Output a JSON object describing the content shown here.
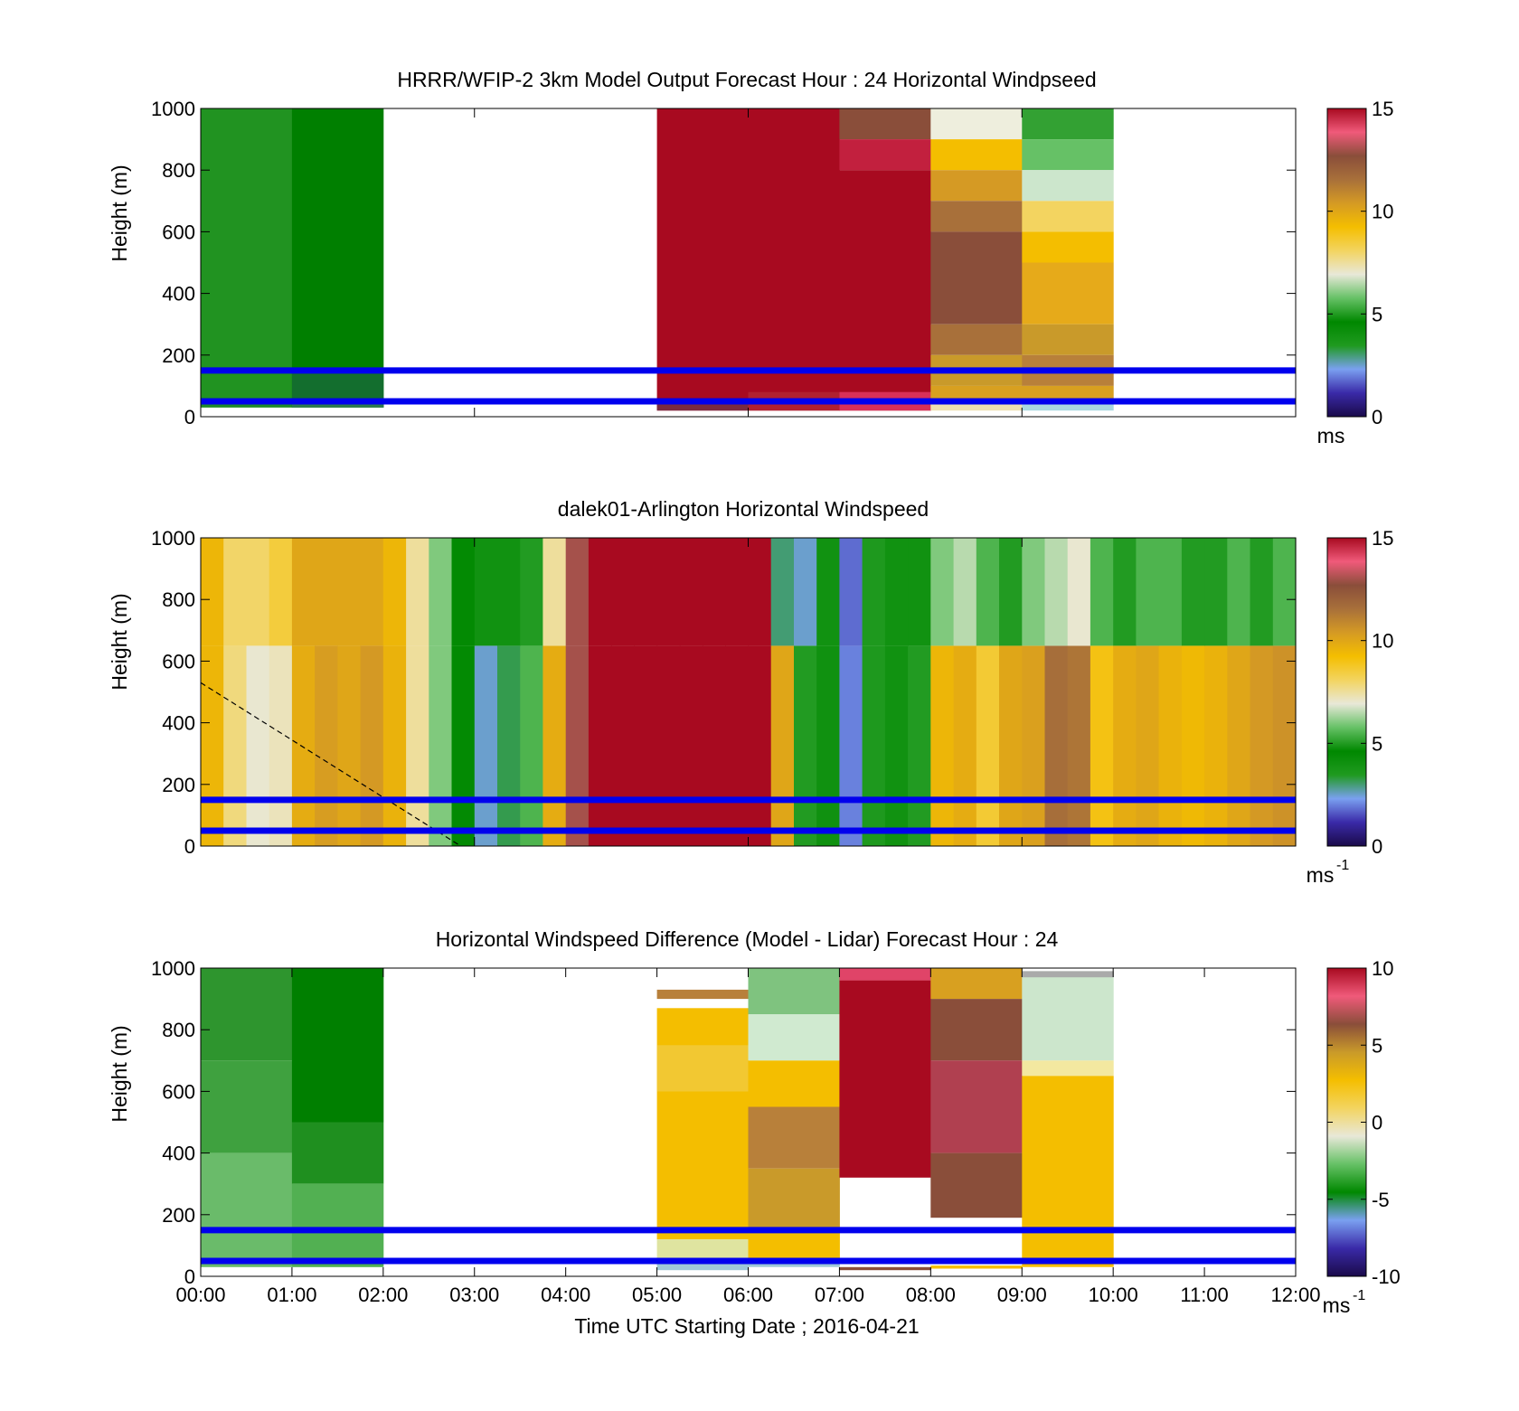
{
  "colors": {
    "wind_scale": [
      "#1a0a4a",
      "#3a2aa8",
      "#7aa0f0",
      "#1f9a1f",
      "#008800",
      "#66c166",
      "#e8e8d8",
      "#f3d460",
      "#f4be00",
      "#d59a24",
      "#a8703a",
      "#8a4e3a",
      "#f05a7a",
      "#a80a20"
    ],
    "diff_scale": [
      "#1a0a4a",
      "#3a2aa8",
      "#7aa0f0",
      "#008800",
      "#66c166",
      "#e8e8d8",
      "#f3d460",
      "#f4be00",
      "#c99a2a",
      "#8a4e3a",
      "#f05a7a",
      "#a80a20"
    ],
    "height_lines": "#0000ee",
    "axis": "#000000"
  },
  "chart_data": [
    {
      "type": "heatmap",
      "title": "HRRR/WFIP-2 3km Model Output   Forecast Hour : 24 Horizontal Windpseed",
      "xlabel": "",
      "ylabel": "Height (m)",
      "xlim_hours": [
        0,
        12
      ],
      "ylim": [
        0,
        1000
      ],
      "yticks": [
        "0",
        "200",
        "400",
        "600",
        "800",
        "1000"
      ],
      "colorbar": {
        "range": [
          0,
          15
        ],
        "ticks": [
          "0",
          "5",
          "10",
          "15"
        ],
        "unit": "ms"
      },
      "reference_heights_m": [
        50,
        150
      ],
      "columns": [
        {
          "start_hour": 0,
          "end_hour": 1,
          "cells": [
            [
              30,
              1000,
              "#219321"
            ],
            [
              30,
              60,
              "#1f8a2a"
            ]
          ]
        },
        {
          "start_hour": 1,
          "end_hour": 2,
          "cells": [
            [
              30,
              1000,
              "#007f00"
            ],
            [
              30,
              150,
              "#136e2e"
            ],
            [
              30,
              60,
              "#2d7a4f"
            ]
          ]
        },
        {
          "start_hour": 5,
          "end_hour": 6,
          "cells": [
            [
              20,
              1000,
              "#a80a20"
            ],
            [
              20,
              40,
              "#7a2a40"
            ]
          ]
        },
        {
          "start_hour": 6,
          "end_hour": 7,
          "cells": [
            [
              20,
              1000,
              "#a80a20"
            ],
            [
              20,
              80,
              "#b02030"
            ]
          ]
        },
        {
          "start_hour": 7,
          "end_hour": 8,
          "cells": [
            [
              900,
              1000,
              "#8a4e3a"
            ],
            [
              800,
              900,
              "#c2203e"
            ],
            [
              20,
              800,
              "#a80a20"
            ],
            [
              20,
              80,
              "#d83058"
            ]
          ]
        },
        {
          "start_hour": 8,
          "end_hour": 9,
          "cells": [
            [
              900,
              1000,
              "#eeeedd"
            ],
            [
              800,
              900,
              "#f4be00"
            ],
            [
              700,
              800,
              "#d59a24"
            ],
            [
              600,
              700,
              "#a8703a"
            ],
            [
              300,
              600,
              "#8a4e3a"
            ],
            [
              200,
              300,
              "#a8703a"
            ],
            [
              100,
              200,
              "#c99a2a"
            ],
            [
              30,
              100,
              "#d8a020"
            ],
            [
              20,
              40,
              "#efe0b0"
            ]
          ]
        },
        {
          "start_hour": 9,
          "end_hour": 10,
          "cells": [
            [
              900,
              1000,
              "#33a133"
            ],
            [
              800,
              900,
              "#66c166"
            ],
            [
              700,
              800,
              "#cce6cc"
            ],
            [
              600,
              700,
              "#f3d460"
            ],
            [
              500,
              600,
              "#f4be00"
            ],
            [
              300,
              500,
              "#e6aa1a"
            ],
            [
              200,
              300,
              "#c99a2a"
            ],
            [
              100,
              200,
              "#b8803a"
            ],
            [
              40,
              100,
              "#d8a020"
            ],
            [
              20,
              40,
              "#a8d8e0"
            ]
          ]
        }
      ]
    },
    {
      "type": "heatmap",
      "title": "dalek01-Arlington  Horizontal Windspeed",
      "xlabel": "",
      "ylabel": "Height (m)",
      "xlim_hours": [
        0,
        12
      ],
      "ylim": [
        0,
        1000
      ],
      "yticks": [
        "0",
        "200",
        "400",
        "600",
        "800",
        "1000"
      ],
      "colorbar": {
        "range": [
          0,
          15
        ],
        "ticks": [
          "0",
          "5",
          "10",
          "15"
        ],
        "unit": "ms",
        "unit_exponent": "-1"
      },
      "reference_heights_m": [
        50,
        150
      ],
      "dashed_line_hours_m": [
        [
          0,
          530
        ],
        [
          2.85,
          0
        ]
      ],
      "column_width_hours": 0.25,
      "column_speeds_ms": [
        9.5,
        7.8,
        7.0,
        7.2,
        9.8,
        10.3,
        10.0,
        10.4,
        9.6,
        7.5,
        6.0,
        4.5,
        2.5,
        3.2,
        5.5,
        9.8,
        13.0,
        15.0,
        15.0,
        15.0,
        15.0,
        15.0,
        15.0,
        15.0,
        15.0,
        10.0,
        5.0,
        4.8,
        2.0,
        3.5,
        4.0,
        5.0,
        9.5,
        9.8,
        8.6,
        10.0,
        10.2,
        11.6,
        11.4,
        9.0,
        9.8,
        10.0,
        9.6,
        9.4,
        9.6,
        10.0,
        10.4,
        10.6
      ],
      "column_speeds_above_650m_ms": [
        9.5,
        8.0,
        8.0,
        8.5,
        10.0,
        10.0,
        10.0,
        10.0,
        9.5,
        7.5,
        6.0,
        4.5,
        4.0,
        4.0,
        5.0,
        7.5,
        13.0,
        15.0,
        15.0,
        15.0,
        15.0,
        15.0,
        15.0,
        15.0,
        15.0,
        3.0,
        2.5,
        4.0,
        1.8,
        3.5,
        4.0,
        4.0,
        6.0,
        6.5,
        5.5,
        5.0,
        6.0,
        6.5,
        7.0,
        5.5,
        5.0,
        5.5,
        5.5,
        5.0,
        5.0,
        5.5,
        5.0,
        5.5
      ]
    },
    {
      "type": "heatmap",
      "title": "Horizontal Windspeed Difference (Model - Lidar) Forecast Hour : 24",
      "xlabel": "Time UTC  Starting Date ; 2016-04-21",
      "ylabel": "Height (m)",
      "xlim_hours": [
        0,
        12
      ],
      "xticks": [
        "00:00",
        "01:00",
        "02:00",
        "03:00",
        "04:00",
        "05:00",
        "06:00",
        "07:00",
        "08:00",
        "09:00",
        "10:00",
        "11:00",
        "12:00"
      ],
      "ylim": [
        0,
        1000
      ],
      "yticks": [
        "0",
        "200",
        "400",
        "600",
        "800",
        "1000"
      ],
      "colorbar": {
        "range": [
          -10,
          10
        ],
        "ticks": [
          "-10",
          "-5",
          "0",
          "5",
          "10"
        ],
        "unit": "ms",
        "unit_exponent": "-1"
      },
      "reference_heights_m": [
        50,
        150
      ],
      "columns": [
        {
          "start_hour": 0,
          "end_hour": 1,
          "cells": [
            [
              700,
              1000,
              "#2e952e"
            ],
            [
              400,
              700,
              "#3fa13f"
            ],
            [
              30,
              400,
              "#6abb6a"
            ]
          ]
        },
        {
          "start_hour": 1,
          "end_hour": 2,
          "cells": [
            [
              500,
              1000,
              "#007f00"
            ],
            [
              300,
              500,
              "#1f8f1f"
            ],
            [
              30,
              300,
              "#52b052"
            ]
          ]
        },
        {
          "start_hour": 5,
          "end_hour": 6,
          "cells": [
            [
              900,
              930,
              "#b8803a"
            ],
            [
              120,
              870,
              "#f4be00"
            ],
            [
              600,
              750,
              "#f2c832"
            ],
            [
              30,
              120,
              "#dfe4a0"
            ],
            [
              20,
              40,
              "#9ec8d8"
            ]
          ]
        },
        {
          "start_hour": 6,
          "end_hour": 7,
          "cells": [
            [
              850,
              1000,
              "#7fc37f"
            ],
            [
              700,
              850,
              "#d0ead0"
            ],
            [
              550,
              700,
              "#f4be00"
            ],
            [
              350,
              550,
              "#b8803a"
            ],
            [
              150,
              350,
              "#c99a2a"
            ],
            [
              60,
              150,
              "#f4be00"
            ],
            [
              30,
              60,
              "#9ec8d8"
            ]
          ]
        },
        {
          "start_hour": 7,
          "end_hour": 8,
          "cells": [
            [
              960,
              1000,
              "#e04468"
            ],
            [
              320,
              960,
              "#a80a20"
            ],
            [
              20,
              30,
              "#8a4e3a"
            ]
          ]
        },
        {
          "start_hour": 8,
          "end_hour": 9,
          "cells": [
            [
              900,
              1000,
              "#d8a020"
            ],
            [
              700,
              900,
              "#8a4e3a"
            ],
            [
              400,
              700,
              "#b04050"
            ],
            [
              190,
              400,
              "#8a4e3a"
            ],
            [
              25,
              35,
              "#f4be00"
            ]
          ]
        },
        {
          "start_hour": 9,
          "end_hour": 10,
          "cells": [
            [
              700,
              990,
              "#cce6cc"
            ],
            [
              650,
              700,
              "#f3e8a0"
            ],
            [
              30,
              650,
              "#f4be00"
            ],
            [
              970,
              990,
              "#aaaaaa"
            ]
          ]
        }
      ]
    }
  ]
}
